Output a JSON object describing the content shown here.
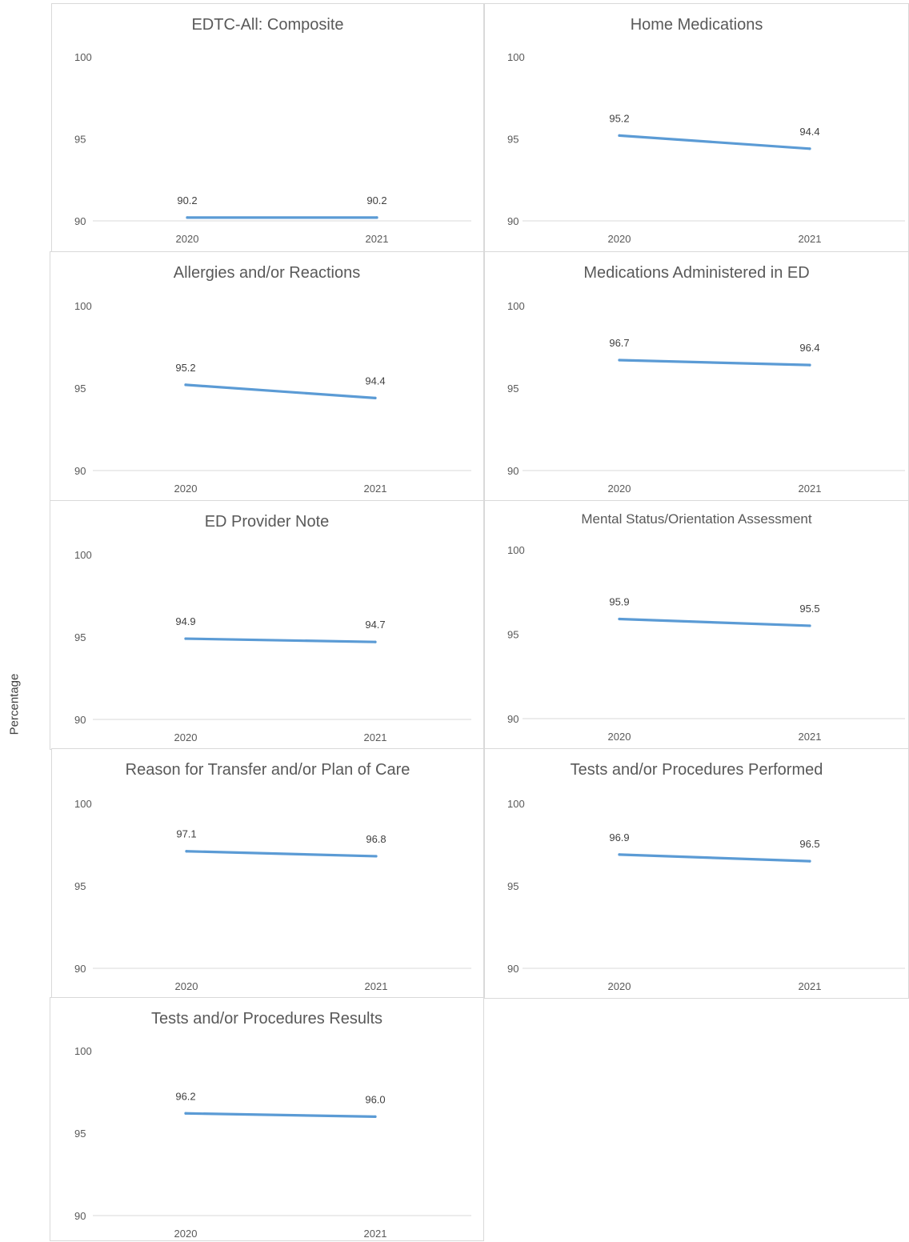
{
  "ylabel": "Percentage",
  "colors": {
    "line": "#5b9bd5",
    "axis": "#d9d9d9",
    "text": "#595959"
  },
  "chart_data": [
    {
      "type": "line",
      "title": "EDTC-All: Composite",
      "categories": [
        "2020",
        "2021"
      ],
      "values": [
        90.2,
        90.2
      ],
      "labels": [
        "90.2",
        "90.2"
      ],
      "ylim": [
        90,
        100
      ],
      "yticks": [
        "90",
        "95",
        "100"
      ]
    },
    {
      "type": "line",
      "title": "Home Medications",
      "categories": [
        "2020",
        "2021"
      ],
      "values": [
        95.2,
        94.4
      ],
      "labels": [
        "95.2",
        "94.4"
      ],
      "ylim": [
        90,
        100
      ],
      "yticks": [
        "90",
        "95",
        "100"
      ]
    },
    {
      "type": "line",
      "title": "Allergies and/or Reactions",
      "categories": [
        "2020",
        "2021"
      ],
      "values": [
        95.2,
        94.4
      ],
      "labels": [
        "95.2",
        "94.4"
      ],
      "ylim": [
        90,
        100
      ],
      "yticks": [
        "90",
        "95",
        "100"
      ]
    },
    {
      "type": "line",
      "title": "Medications Administered in ED",
      "categories": [
        "2020",
        "2021"
      ],
      "values": [
        96.7,
        96.4
      ],
      "labels": [
        "96.7",
        "96.4"
      ],
      "ylim": [
        90,
        100
      ],
      "yticks": [
        "90",
        "95",
        "100"
      ]
    },
    {
      "type": "line",
      "title": "ED Provider Note",
      "categories": [
        "2020",
        "2021"
      ],
      "values": [
        94.9,
        94.7
      ],
      "labels": [
        "94.9",
        "94.7"
      ],
      "ylim": [
        90,
        100
      ],
      "yticks": [
        "90",
        "95",
        "100"
      ]
    },
    {
      "type": "line",
      "title": "Mental Status/Orientation Assessment",
      "categories": [
        "2020",
        "2021"
      ],
      "values": [
        95.9,
        95.5
      ],
      "labels": [
        "95.9",
        "95.5"
      ],
      "ylim": [
        90,
        100
      ],
      "yticks": [
        "90",
        "95",
        "100"
      ]
    },
    {
      "type": "line",
      "title": "Reason for Transfer and/or Plan of Care",
      "categories": [
        "2020",
        "2021"
      ],
      "values": [
        97.1,
        96.8
      ],
      "labels": [
        "97.1",
        "96.8"
      ],
      "ylim": [
        90,
        100
      ],
      "yticks": [
        "90",
        "95",
        "100"
      ]
    },
    {
      "type": "line",
      "title": "Tests and/or Procedures Performed",
      "categories": [
        "2020",
        "2021"
      ],
      "values": [
        96.9,
        96.5
      ],
      "labels": [
        "96.9",
        "96.5"
      ],
      "ylim": [
        90,
        100
      ],
      "yticks": [
        "90",
        "95",
        "100"
      ]
    },
    {
      "type": "line",
      "title": "Tests and/or Procedures Results",
      "categories": [
        "2020",
        "2021"
      ],
      "values": [
        96.2,
        96.0
      ],
      "labels": [
        "96.2",
        "96.0"
      ],
      "ylim": [
        90,
        100
      ],
      "yticks": [
        "90",
        "95",
        "100"
      ]
    }
  ]
}
